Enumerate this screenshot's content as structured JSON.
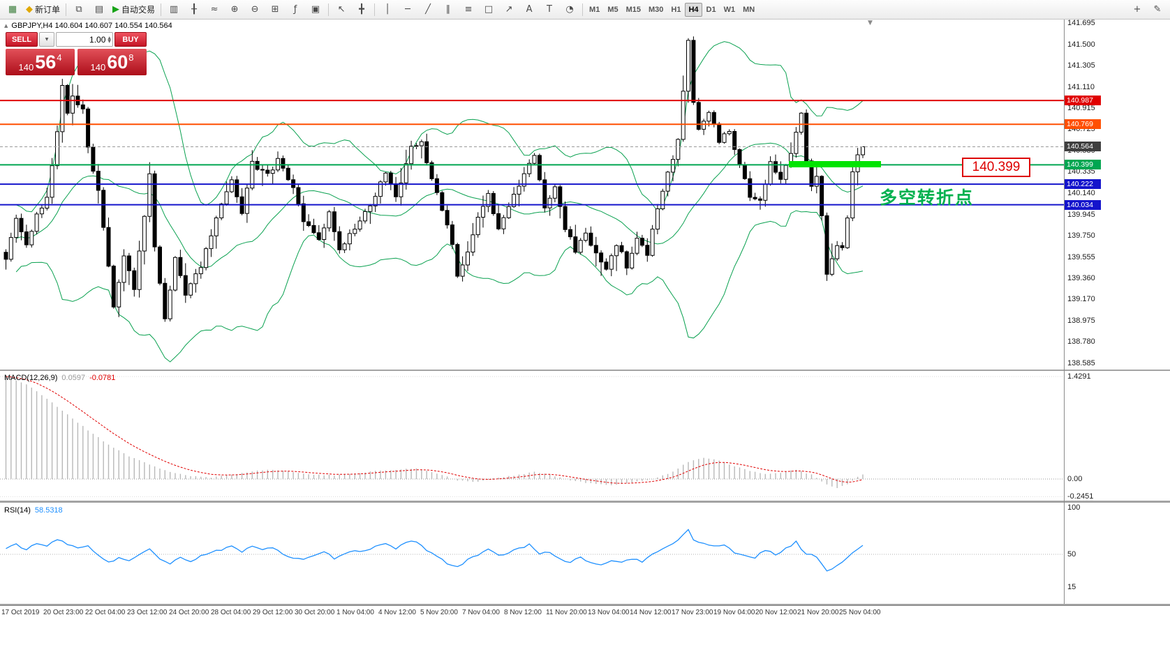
{
  "toolbar": {
    "active_timeframe": "H4",
    "items": [
      {
        "name": "new-chart-button",
        "glyph": "▦",
        "glyph_color": "#3a7d3a"
      },
      {
        "name": "new-order-button",
        "glyph": "◆",
        "glyph_color": "#e0a800",
        "label": "新订单"
      },
      {
        "type": "divider"
      },
      {
        "name": "charts-button",
        "glyph": "⧉"
      },
      {
        "name": "profiles-button",
        "glyph": "▤"
      },
      {
        "name": "auto-trading-button",
        "glyph": "▶",
        "glyph_color": "#17a317",
        "label": "自动交易"
      },
      {
        "type": "divider"
      },
      {
        "name": "bar-chart-button",
        "glyph": "▥"
      },
      {
        "name": "candlestick-chart-button",
        "glyph": "╂"
      },
      {
        "name": "line-chart-button",
        "glyph": "≈"
      },
      {
        "name": "zoom-in-button",
        "glyph": "⊕"
      },
      {
        "name": "zoom-out-button",
        "glyph": "⊖"
      },
      {
        "name": "tile-windows-button",
        "glyph": "⊞"
      },
      {
        "name": "indicators-button",
        "glyph": "ƒ"
      },
      {
        "name": "objects-list-button",
        "glyph": "▣"
      },
      {
        "type": "divider"
      },
      {
        "name": "cursor-button",
        "glyph": "↖"
      },
      {
        "name": "crosshair-button",
        "glyph": "╋"
      },
      {
        "type": "divider"
      },
      {
        "name": "vertical-line-button",
        "glyph": "│"
      },
      {
        "name": "horizontal-line-button",
        "glyph": "─"
      },
      {
        "name": "trendline-button",
        "glyph": "╱"
      },
      {
        "name": "channel-button",
        "glyph": "∥"
      },
      {
        "name": "fibonacci-button",
        "glyph": "≡"
      },
      {
        "name": "shapes-button",
        "glyph": "□"
      },
      {
        "name": "arrows-button",
        "glyph": "↗"
      },
      {
        "name": "text-button",
        "glyph": "A"
      },
      {
        "name": "text-label-button",
        "glyph": "T"
      },
      {
        "name": "cycles-button",
        "glyph": "◔"
      },
      {
        "type": "divider"
      },
      {
        "type": "tf",
        "label": "M1"
      },
      {
        "type": "tf",
        "label": "M5"
      },
      {
        "type": "tf",
        "label": "M15"
      },
      {
        "type": "tf",
        "label": "M30"
      },
      {
        "type": "tf",
        "label": "H1"
      },
      {
        "type": "tf",
        "label": "H4"
      },
      {
        "type": "tf",
        "label": "D1"
      },
      {
        "type": "tf",
        "label": "W1"
      },
      {
        "type": "tf",
        "label": "MN"
      },
      {
        "type": "spacer"
      },
      {
        "name": "add-button",
        "glyph": "+"
      },
      {
        "name": "edit-button",
        "glyph": "✎"
      }
    ]
  },
  "chart": {
    "header_text": "GBPJPY,H4  140.604 140.607 140.554 140.564",
    "symbol": "GBPJPY",
    "period": "H4"
  },
  "one_click": {
    "sell_label": "SELL",
    "buy_label": "BUY",
    "volume": "1.00",
    "bid": {
      "figure": "140",
      "pips": "56",
      "point": "4"
    },
    "ask": {
      "figure": "140",
      "pips": "60",
      "point": "8"
    }
  },
  "icons": {
    "collapse_arrow": "▲",
    "scroll_marker": "▼",
    "dropdown_arrow": "▼",
    "spin_up": "▲",
    "spin_down": "▼"
  },
  "price_axis": {
    "ticks": [
      "141.695",
      "141.500",
      "141.305",
      "141.110",
      "140.915",
      "140.725",
      "140.530",
      "140.335",
      "140.140",
      "139.945",
      "139.750",
      "139.555",
      "139.360",
      "139.170",
      "138.975",
      "138.780",
      "138.585"
    ],
    "tags": [
      {
        "label": "140.987",
        "price": 140.987,
        "bg": "#e00000"
      },
      {
        "label": "140.769",
        "price": 140.769,
        "bg": "#ff4f00"
      },
      {
        "label": "140.564",
        "price": 140.564,
        "bg": "#3f3f3f"
      },
      {
        "label": "140.399",
        "price": 140.399,
        "bg": "#00a651"
      },
      {
        "label": "140.222",
        "price": 140.222,
        "bg": "#1414cc"
      },
      {
        "label": "140.034",
        "price": 140.034,
        "bg": "#1414cc"
      }
    ]
  },
  "time_axis": {
    "labels": [
      "17 Oct 2019",
      "20 Oct 23:00",
      "22 Oct 04:00",
      "23 Oct 12:00",
      "24 Oct 20:00",
      "28 Oct 04:00",
      "29 Oct 12:00",
      "30 Oct 20:00",
      "1 Nov 04:00",
      "4 Nov 12:00",
      "5 Nov 20:00",
      "7 Nov 04:00",
      "8 Nov 12:00",
      "11 Nov 20:00",
      "13 Nov 04:00",
      "14 Nov 12:00",
      "17 Nov 23:00",
      "19 Nov 04:00",
      "20 Nov 12:00",
      "21 Nov 20:00",
      "25 Nov 04:00"
    ]
  },
  "annotations": {
    "callout_text": "140.399",
    "callout_color": "#dd0000",
    "note_text": "多空转折点",
    "note_color": "#00b14f",
    "highlight_color": "#00e400"
  },
  "indicators": {
    "macd": {
      "label": "MACD(12,26,9)",
      "value": "0.0597",
      "signal": "-0.0781",
      "axis": [
        {
          "label": "1.4291",
          "value": 1.4291
        },
        {
          "label": "0.00",
          "value": 0
        },
        {
          "label": "-0.2451",
          "value": -0.2451
        }
      ]
    },
    "rsi": {
      "label": "RSI(14)",
      "value": "58.5318",
      "axis": [
        {
          "label": "100",
          "value": 100
        },
        {
          "label": "50",
          "value": 50
        },
        {
          "label": "15",
          "value": 15
        }
      ]
    }
  },
  "chart_data": {
    "type": "candlestick",
    "symbol": "GBPJPY",
    "timeframe": "H4",
    "bars": 168,
    "ohlc_current": {
      "open": 140.604,
      "high": 140.607,
      "low": 140.554,
      "close": 140.564
    },
    "price_axis_range": [
      138.585,
      141.695
    ],
    "price_path_anchors": [
      [
        0,
        139.55
      ],
      [
        2,
        139.9
      ],
      [
        4,
        139.65
      ],
      [
        6,
        139.95
      ],
      [
        8,
        140.1
      ],
      [
        10,
        140.7
      ],
      [
        11,
        141.12
      ],
      [
        12,
        140.85
      ],
      [
        13,
        141.02
      ],
      [
        15,
        140.9
      ],
      [
        16,
        140.55
      ],
      [
        18,
        140.15
      ],
      [
        19,
        139.85
      ],
      [
        21,
        139.12
      ],
      [
        23,
        139.55
      ],
      [
        25,
        139.28
      ],
      [
        27,
        139.95
      ],
      [
        28,
        140.3
      ],
      [
        29,
        139.65
      ],
      [
        31,
        138.98
      ],
      [
        33,
        139.55
      ],
      [
        35,
        139.22
      ],
      [
        38,
        139.48
      ],
      [
        41,
        139.9
      ],
      [
        44,
        140.25
      ],
      [
        46,
        139.95
      ],
      [
        48,
        140.42
      ],
      [
        51,
        140.3
      ],
      [
        53,
        140.45
      ],
      [
        56,
        140.18
      ],
      [
        58,
        139.88
      ],
      [
        61,
        139.7
      ],
      [
        63,
        139.98
      ],
      [
        65,
        139.62
      ],
      [
        68,
        139.82
      ],
      [
        71,
        140.02
      ],
      [
        74,
        140.32
      ],
      [
        76,
        140.1
      ],
      [
        79,
        140.55
      ],
      [
        81,
        140.62
      ],
      [
        83,
        140.25
      ],
      [
        85,
        140.0
      ],
      [
        87,
        139.68
      ],
      [
        88,
        139.38
      ],
      [
        90,
        139.62
      ],
      [
        92,
        139.92
      ],
      [
        94,
        140.12
      ],
      [
        96,
        139.82
      ],
      [
        98,
        140.02
      ],
      [
        100,
        140.22
      ],
      [
        103,
        140.48
      ],
      [
        105,
        140.02
      ],
      [
        107,
        140.18
      ],
      [
        109,
        139.82
      ],
      [
        111,
        139.62
      ],
      [
        113,
        139.78
      ],
      [
        115,
        139.58
      ],
      [
        117,
        139.42
      ],
      [
        119,
        139.68
      ],
      [
        121,
        139.48
      ],
      [
        123,
        139.72
      ],
      [
        125,
        139.58
      ],
      [
        127,
        140.02
      ],
      [
        129,
        140.32
      ],
      [
        131,
        140.62
      ],
      [
        132,
        141.05
      ],
      [
        133,
        141.55
      ],
      [
        134,
        140.95
      ],
      [
        135,
        140.72
      ],
      [
        137,
        140.88
      ],
      [
        139,
        140.62
      ],
      [
        141,
        140.72
      ],
      [
        143,
        140.38
      ],
      [
        145,
        140.12
      ],
      [
        147,
        140.05
      ],
      [
        149,
        140.42
      ],
      [
        151,
        140.28
      ],
      [
        153,
        140.52
      ],
      [
        155,
        140.88
      ],
      [
        156,
        140.42
      ],
      [
        157,
        140.22
      ],
      [
        158,
        140.28
      ],
      [
        159,
        139.92
      ],
      [
        160,
        139.38
      ],
      [
        161,
        139.55
      ],
      [
        162,
        139.68
      ],
      [
        163,
        139.62
      ],
      [
        164,
        139.92
      ],
      [
        165,
        140.32
      ],
      [
        166,
        140.5
      ],
      [
        167,
        140.564
      ]
    ],
    "levels": [
      {
        "price": 140.987,
        "color": "#e00000",
        "width": 2
      },
      {
        "price": 140.769,
        "color": "#ff4f00",
        "width": 2
      },
      {
        "price": 140.399,
        "color": "#00a651",
        "width": 2
      },
      {
        "price": 140.222,
        "color": "#1414cc",
        "width": 2
      },
      {
        "price": 140.034,
        "color": "#1414cc",
        "width": 2
      }
    ],
    "current_price": {
      "price": 140.564,
      "label": "140.564"
    },
    "bollinger": {
      "period": 20,
      "deviation": 2,
      "color": "#0aa150"
    },
    "macd": {
      "axis_range": [
        -0.2451,
        1.4291
      ],
      "histogram_color": "#b8b8b8",
      "signal_color": "#e00000",
      "anchors": [
        [
          0,
          1.43
        ],
        [
          4,
          1.32
        ],
        [
          8,
          1.12
        ],
        [
          12,
          0.9
        ],
        [
          16,
          0.68
        ],
        [
          20,
          0.48
        ],
        [
          24,
          0.32
        ],
        [
          28,
          0.2
        ],
        [
          32,
          0.1
        ],
        [
          36,
          0.04
        ],
        [
          40,
          0.02
        ],
        [
          44,
          0.06
        ],
        [
          48,
          0.11
        ],
        [
          52,
          0.13
        ],
        [
          56,
          0.1
        ],
        [
          60,
          0.06
        ],
        [
          64,
          0.05
        ],
        [
          68,
          0.08
        ],
        [
          72,
          0.11
        ],
        [
          76,
          0.13
        ],
        [
          80,
          0.15
        ],
        [
          84,
          0.08
        ],
        [
          88,
          -0.02
        ],
        [
          92,
          -0.04
        ],
        [
          96,
          0.02
        ],
        [
          100,
          0.06
        ],
        [
          103,
          0.1
        ],
        [
          106,
          0.06
        ],
        [
          110,
          -0.02
        ],
        [
          114,
          -0.06
        ],
        [
          118,
          -0.09
        ],
        [
          122,
          -0.05
        ],
        [
          126,
          0.0
        ],
        [
          130,
          0.1
        ],
        [
          133,
          0.24
        ],
        [
          136,
          0.3
        ],
        [
          139,
          0.26
        ],
        [
          142,
          0.18
        ],
        [
          145,
          0.11
        ],
        [
          148,
          0.07
        ],
        [
          151,
          0.09
        ],
        [
          154,
          0.13
        ],
        [
          157,
          0.06
        ],
        [
          160,
          -0.08
        ],
        [
          162,
          -0.13
        ],
        [
          164,
          -0.07
        ],
        [
          166,
          0.03
        ],
        [
          167,
          0.06
        ]
      ]
    },
    "rsi": {
      "color": "#1e90ff",
      "mid_level": 50,
      "anchors": [
        [
          0,
          56
        ],
        [
          2,
          61
        ],
        [
          4,
          55
        ],
        [
          6,
          62
        ],
        [
          8,
          58
        ],
        [
          10,
          66
        ],
        [
          12,
          61
        ],
        [
          14,
          56
        ],
        [
          16,
          59
        ],
        [
          18,
          50
        ],
        [
          20,
          41
        ],
        [
          22,
          46
        ],
        [
          24,
          43
        ],
        [
          26,
          49
        ],
        [
          28,
          56
        ],
        [
          30,
          44
        ],
        [
          32,
          40
        ],
        [
          34,
          46
        ],
        [
          36,
          42
        ],
        [
          38,
          49
        ],
        [
          40,
          52
        ],
        [
          42,
          55
        ],
        [
          44,
          58
        ],
        [
          46,
          52
        ],
        [
          48,
          59
        ],
        [
          50,
          56
        ],
        [
          52,
          58
        ],
        [
          54,
          50
        ],
        [
          56,
          46
        ],
        [
          58,
          44
        ],
        [
          60,
          48
        ],
        [
          62,
          52
        ],
        [
          64,
          46
        ],
        [
          66,
          50
        ],
        [
          68,
          53
        ],
        [
          70,
          55
        ],
        [
          72,
          58
        ],
        [
          74,
          61
        ],
        [
          76,
          56
        ],
        [
          78,
          62
        ],
        [
          80,
          64
        ],
        [
          82,
          55
        ],
        [
          84,
          48
        ],
        [
          86,
          40
        ],
        [
          88,
          36
        ],
        [
          90,
          45
        ],
        [
          92,
          50
        ],
        [
          94,
          55
        ],
        [
          96,
          48
        ],
        [
          98,
          52
        ],
        [
          100,
          56
        ],
        [
          102,
          60
        ],
        [
          104,
          50
        ],
        [
          106,
          53
        ],
        [
          108,
          45
        ],
        [
          110,
          42
        ],
        [
          112,
          46
        ],
        [
          114,
          42
        ],
        [
          116,
          38
        ],
        [
          118,
          44
        ],
        [
          120,
          41
        ],
        [
          122,
          45
        ],
        [
          124,
          42
        ],
        [
          126,
          50
        ],
        [
          128,
          56
        ],
        [
          130,
          62
        ],
        [
          132,
          70
        ],
        [
          133,
          76
        ],
        [
          134,
          66
        ],
        [
          136,
          62
        ],
        [
          138,
          58
        ],
        [
          140,
          61
        ],
        [
          142,
          52
        ],
        [
          144,
          48
        ],
        [
          146,
          47
        ],
        [
          148,
          54
        ],
        [
          150,
          50
        ],
        [
          152,
          56
        ],
        [
          154,
          63
        ],
        [
          156,
          50
        ],
        [
          158,
          48
        ],
        [
          160,
          32
        ],
        [
          162,
          38
        ],
        [
          164,
          46
        ],
        [
          166,
          56
        ],
        [
          167,
          58.5
        ]
      ]
    }
  }
}
